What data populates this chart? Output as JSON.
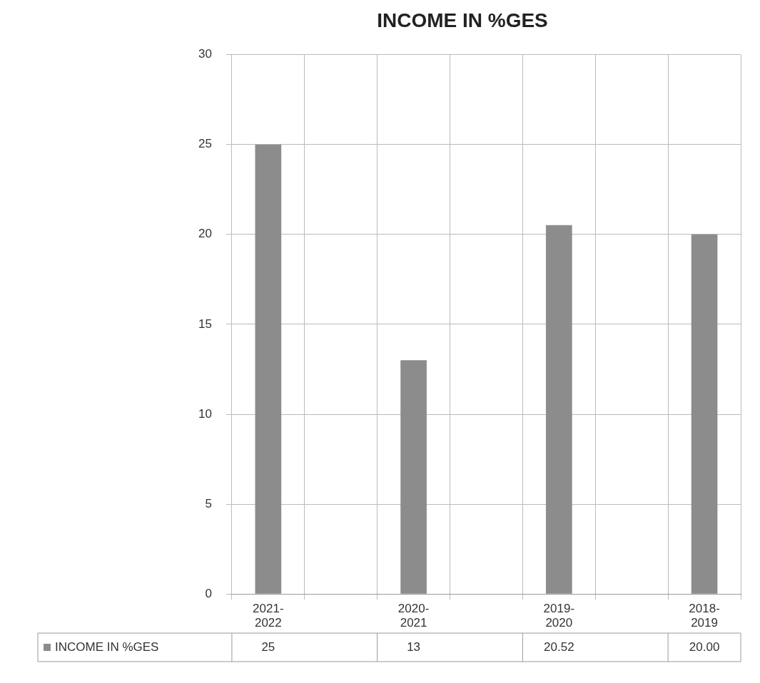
{
  "chart_data": {
    "type": "bar",
    "title": "INCOME IN %GES",
    "categories": [
      "2021-2022",
      null,
      "2020-2021",
      null,
      "2019-2020",
      null,
      "2018-2019"
    ],
    "series": [
      {
        "name": "INCOME IN %GES",
        "color": "#8c8c8c",
        "values": [
          25,
          null,
          13,
          null,
          20.52,
          null,
          20.0
        ],
        "value_labels": [
          "25",
          null,
          "13",
          null,
          "20.52",
          null,
          "20.00"
        ]
      }
    ],
    "ylim": [
      0,
      30
    ],
    "yticks": [
      0,
      5,
      10,
      15,
      20,
      25,
      30
    ],
    "grid": true,
    "legend": "bottom"
  }
}
